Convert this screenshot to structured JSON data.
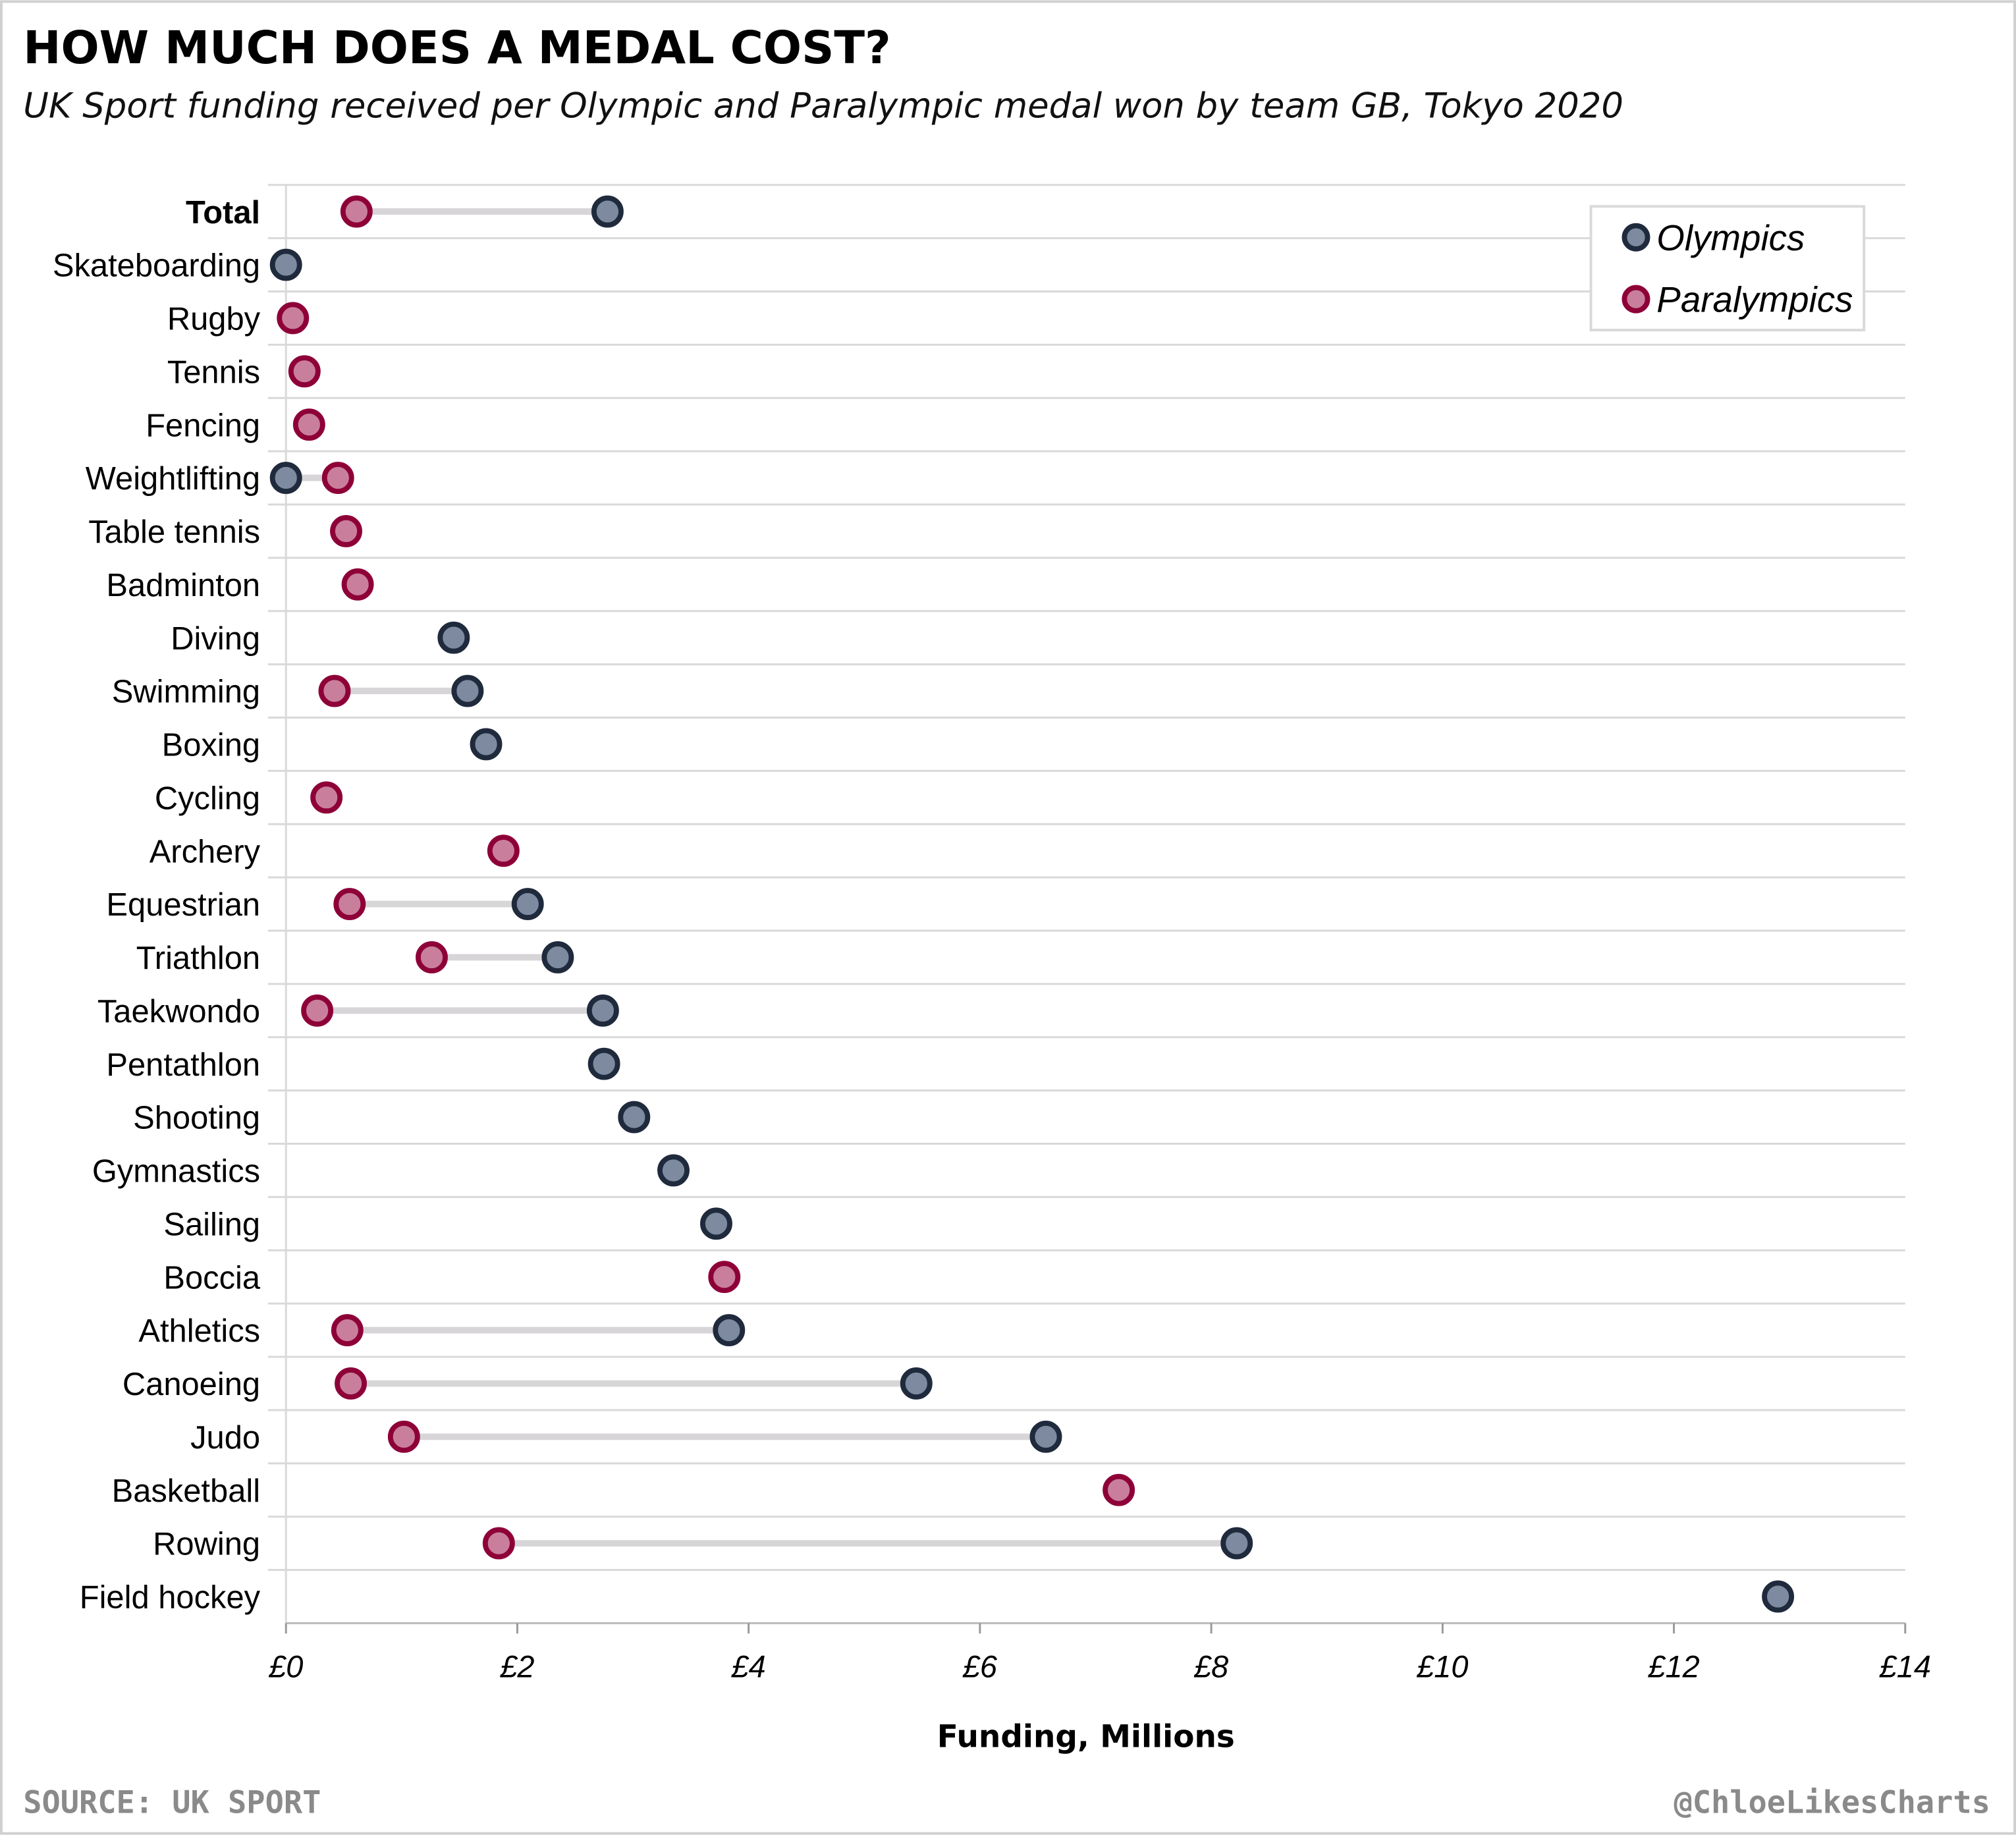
{
  "title": "HOW MUCH DOES A MEDAL COST?",
  "subtitle": "UK Sport funding received per Olympic and Paralympic medal won by team GB, Tokyo 2020",
  "source": "SOURCE: UK SPORT",
  "credit": "@ChloeLikesCharts",
  "colors": {
    "olympics_stroke": "#1f2a3c",
    "olympics_fill": "#7d8aa0",
    "paralympics_stroke": "#8e0038",
    "paralympics_fill": "#c97f9b",
    "connector": "#d7d5d7",
    "grid": "#d9d9d9"
  },
  "chart_data": {
    "type": "dumbbell",
    "xlabel": "Funding, Millions",
    "xlim": [
      0,
      14
    ],
    "xticks": [
      0,
      2,
      4,
      6,
      8,
      10,
      12,
      14
    ],
    "xtick_labels": [
      "£0",
      "£2",
      "£4",
      "£6",
      "£8",
      "£10",
      "£12",
      "£14"
    ],
    "grid": "horizontal",
    "legend_position": "top-right",
    "legend": [
      "Olympics",
      "Paralympics"
    ],
    "categories": [
      "Total",
      "Skateboarding",
      "Rugby",
      "Tennis",
      "Fencing",
      "Weightlifting",
      "Table tennis",
      "Badminton",
      "Diving",
      "Swimming",
      "Boxing",
      "Cycling",
      "Archery",
      "Equestrian",
      "Triathlon",
      "Taekwondo",
      "Pentathlon",
      "Shooting",
      "Gymnastics",
      "Sailing",
      "Boccia",
      "Athletics",
      "Canoeing",
      "Judo",
      "Basketball",
      "Rowing",
      "Field hockey"
    ],
    "bold_categories": [
      "Total"
    ],
    "series": [
      {
        "name": "Olympics",
        "values": [
          2.78,
          0.0,
          null,
          null,
          null,
          0.0,
          null,
          null,
          1.45,
          1.57,
          1.73,
          null,
          null,
          2.09,
          2.35,
          2.74,
          2.75,
          3.01,
          3.35,
          3.72,
          null,
          3.83,
          5.45,
          6.57,
          null,
          8.22,
          12.9
        ]
      },
      {
        "name": "Paralympics",
        "values": [
          0.61,
          null,
          0.06,
          0.16,
          0.2,
          0.45,
          0.52,
          0.62,
          null,
          0.42,
          null,
          0.35,
          1.88,
          0.55,
          1.26,
          0.27,
          null,
          null,
          null,
          null,
          3.79,
          0.53,
          0.56,
          1.02,
          7.2,
          1.84,
          null
        ]
      }
    ]
  }
}
